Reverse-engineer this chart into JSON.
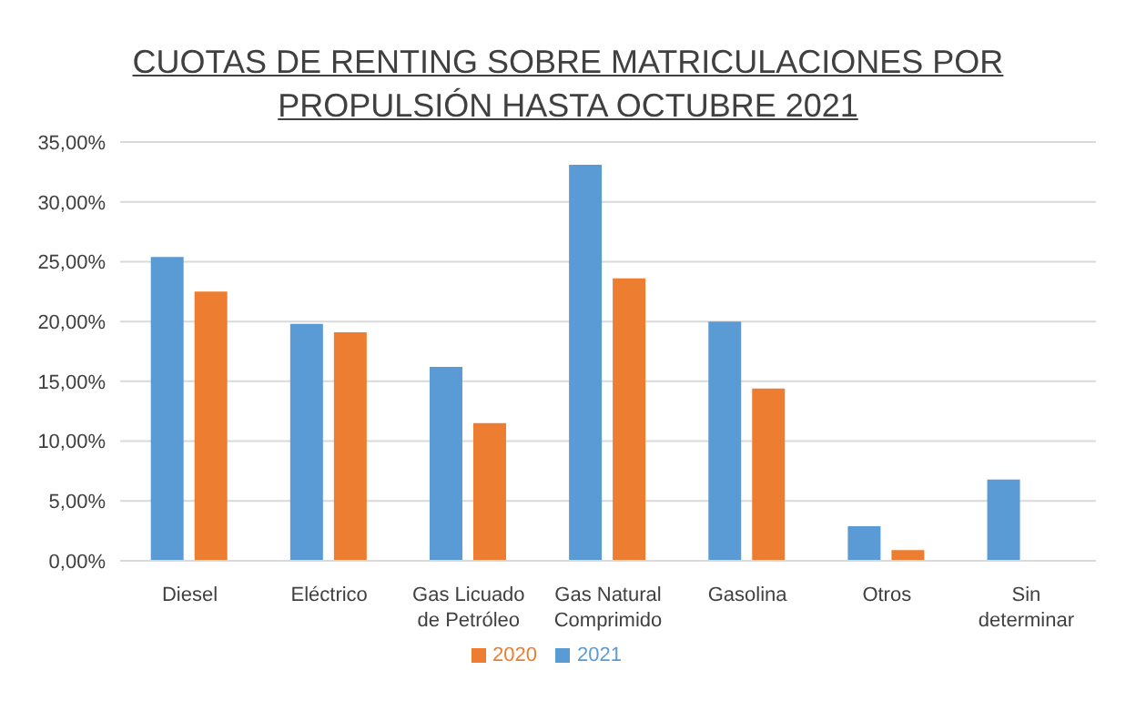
{
  "chart_data": {
    "type": "bar",
    "title": "CUOTAS DE RENTING SOBRE MATRICULACIONES POR PROPULSIÓN HASTA OCTUBRE 2021",
    "categories": [
      "Diesel",
      "Eléctrico",
      "Gas Licuado de Petróleo",
      "Gas Natural Comprimido",
      "Gasolina",
      "Otros",
      "Sin determinar"
    ],
    "series": [
      {
        "name": "2021",
        "color": "#5b9bd5",
        "values": [
          25.4,
          19.8,
          16.2,
          33.1,
          20.0,
          2.9,
          6.8
        ]
      },
      {
        "name": "2020",
        "color": "#ed7d31",
        "values": [
          22.5,
          19.1,
          11.5,
          23.6,
          14.4,
          0.9,
          null
        ]
      }
    ],
    "ylim": [
      0,
      35
    ],
    "yticks": [
      {
        "value": 0,
        "label": "0,00%"
      },
      {
        "value": 5,
        "label": "5,00%"
      },
      {
        "value": 10,
        "label": "10,00%"
      },
      {
        "value": 15,
        "label": "15,00%"
      },
      {
        "value": 20,
        "label": "20,00%"
      },
      {
        "value": 25,
        "label": "25,00%"
      },
      {
        "value": 30,
        "label": "30,00%"
      },
      {
        "value": 35,
        "label": "35,00%"
      }
    ],
    "grid": "y",
    "legend": "bottom"
  }
}
